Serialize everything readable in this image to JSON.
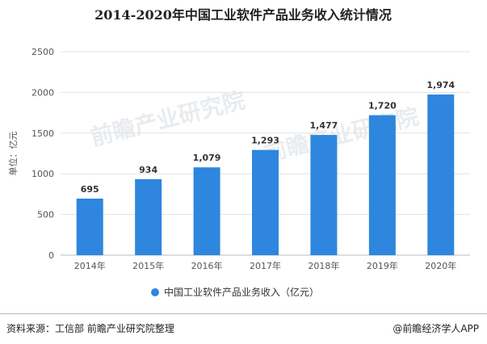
{
  "chart_data": {
    "type": "bar",
    "title": "2014-2020年中国工业软件产品业务收入统计情况",
    "ylabel": "单位：亿元",
    "xlabel": "",
    "categories": [
      "2014年",
      "2015年",
      "2016年",
      "2017年",
      "2018年",
      "2019年",
      "2020年"
    ],
    "series": [
      {
        "name": "中国工业软件产品业务收入（亿元）",
        "values": [
          695,
          934,
          1079,
          1293,
          1477,
          1720,
          1974
        ]
      }
    ],
    "data_labels": [
      "695",
      "934",
      "1,079",
      "1,293",
      "1,477",
      "1,720",
      "1,974"
    ],
    "ylim": [
      0,
      2500
    ],
    "yticks": [
      "0",
      "500",
      "1000",
      "1500",
      "2000",
      "2500"
    ],
    "grid": true,
    "legend_position": "bottom",
    "bar_color": "#2E86DE"
  },
  "footer": {
    "source": "资料来源：工信部 前瞻产业研究院整理",
    "brand": "@前瞻经济学人APP"
  }
}
